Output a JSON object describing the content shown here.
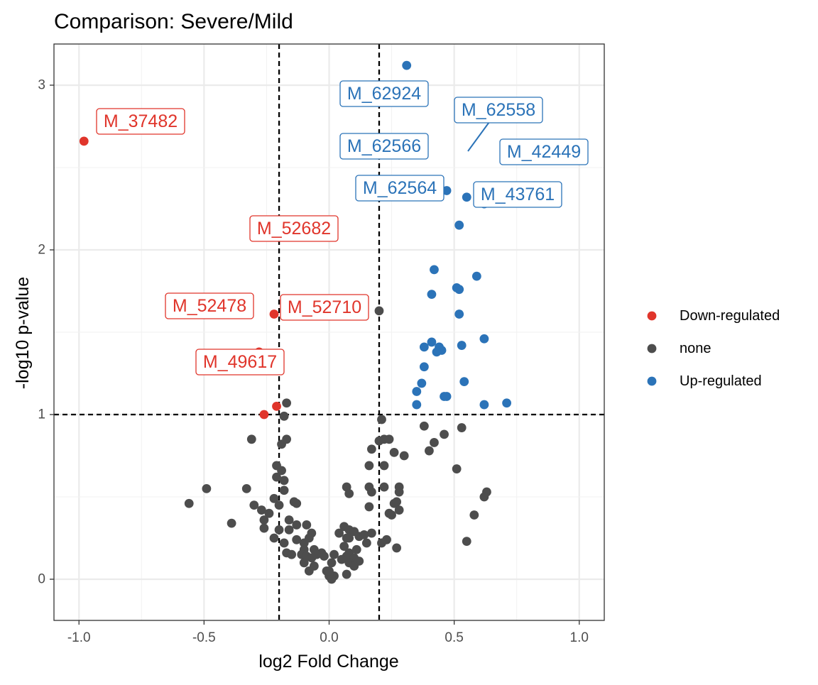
{
  "chart_data": {
    "type": "scatter",
    "title": "Comparison: Severe/Mild",
    "xlabel": "log2 Fold Change",
    "ylabel": "-log10 p-value",
    "xlim": [
      -1.1,
      1.1
    ],
    "ylim": [
      -0.25,
      3.25
    ],
    "x_ticks": [
      -1.0,
      -0.5,
      0.0,
      0.5,
      1.0
    ],
    "x_tick_labels": [
      "-1.0",
      "-0.5",
      "0.0",
      "0.5",
      "1.0"
    ],
    "y_ticks": [
      0,
      1,
      2,
      3
    ],
    "y_tick_labels": [
      "0",
      "1",
      "2",
      "3"
    ],
    "thresholds": {
      "x": [
        -0.2,
        0.2
      ],
      "y": 1
    },
    "grid": true,
    "legend_position": "right",
    "colors": {
      "Down-regulated": "#e0352b",
      "none": "#4d4d4d",
      "Up-regulated": "#2b73b8"
    },
    "legend": [
      {
        "label": "Down-regulated",
        "color": "#e0352b"
      },
      {
        "label": "none",
        "color": "#4d4d4d"
      },
      {
        "label": "Up-regulated",
        "color": "#2b73b8"
      }
    ],
    "series": [
      {
        "name": "Down-regulated",
        "points": [
          [
            -0.98,
            2.66
          ],
          [
            -0.22,
            1.61
          ],
          [
            -0.28,
            1.38
          ],
          [
            -0.21,
            1.05
          ],
          [
            -0.26,
            1.0
          ]
        ]
      },
      {
        "name": "Up-regulated",
        "points": [
          [
            0.31,
            3.12
          ],
          [
            0.47,
            2.36
          ],
          [
            0.55,
            2.32
          ],
          [
            0.62,
            2.28
          ],
          [
            0.52,
            2.15
          ],
          [
            0.42,
            1.88
          ],
          [
            0.59,
            1.84
          ],
          [
            0.51,
            1.77
          ],
          [
            0.52,
            1.76
          ],
          [
            0.41,
            1.73
          ],
          [
            0.52,
            1.61
          ],
          [
            0.62,
            1.46
          ],
          [
            0.41,
            1.44
          ],
          [
            0.53,
            1.42
          ],
          [
            0.38,
            1.41
          ],
          [
            0.44,
            1.41
          ],
          [
            0.45,
            1.39
          ],
          [
            0.43,
            1.38
          ],
          [
            0.38,
            1.29
          ],
          [
            0.54,
            1.2
          ],
          [
            0.37,
            1.19
          ],
          [
            0.35,
            1.14
          ],
          [
            0.46,
            1.11
          ],
          [
            0.47,
            1.11
          ],
          [
            0.71,
            1.07
          ],
          [
            0.62,
            1.06
          ],
          [
            0.35,
            1.06
          ]
        ]
      },
      {
        "name": "none",
        "points": [
          [
            0.2,
            1.63
          ],
          [
            -0.17,
            1.07
          ],
          [
            -0.18,
            0.99
          ],
          [
            0.21,
            0.97
          ],
          [
            0.38,
            0.93
          ],
          [
            0.53,
            0.92
          ],
          [
            0.46,
            0.88
          ],
          [
            0.2,
            0.84
          ],
          [
            0.22,
            0.85
          ],
          [
            0.24,
            0.85
          ],
          [
            -0.31,
            0.85
          ],
          [
            -0.19,
            0.82
          ],
          [
            -0.17,
            0.85
          ],
          [
            0.17,
            0.79
          ],
          [
            0.42,
            0.83
          ],
          [
            0.4,
            0.78
          ],
          [
            0.26,
            0.77
          ],
          [
            0.3,
            0.75
          ],
          [
            -0.21,
            0.69
          ],
          [
            -0.19,
            0.66
          ],
          [
            0.16,
            0.69
          ],
          [
            0.22,
            0.69
          ],
          [
            0.51,
            0.67
          ],
          [
            -0.21,
            0.62
          ],
          [
            -0.18,
            0.6
          ],
          [
            -0.49,
            0.55
          ],
          [
            -0.33,
            0.55
          ],
          [
            -0.18,
            0.54
          ],
          [
            0.07,
            0.56
          ],
          [
            0.16,
            0.56
          ],
          [
            0.22,
            0.56
          ],
          [
            0.28,
            0.56
          ],
          [
            0.28,
            0.53
          ],
          [
            0.17,
            0.53
          ],
          [
            0.08,
            0.52
          ],
          [
            0.63,
            0.53
          ],
          [
            0.62,
            0.5
          ],
          [
            -0.22,
            0.49
          ],
          [
            -0.2,
            0.45
          ],
          [
            -0.14,
            0.47
          ],
          [
            -0.13,
            0.46
          ],
          [
            -0.56,
            0.46
          ],
          [
            -0.3,
            0.45
          ],
          [
            -0.27,
            0.42
          ],
          [
            -0.24,
            0.4
          ],
          [
            0.26,
            0.46
          ],
          [
            0.27,
            0.47
          ],
          [
            0.16,
            0.44
          ],
          [
            0.24,
            0.4
          ],
          [
            0.25,
            0.39
          ],
          [
            0.28,
            0.42
          ],
          [
            -0.16,
            0.36
          ],
          [
            -0.13,
            0.33
          ],
          [
            -0.39,
            0.34
          ],
          [
            -0.26,
            0.36
          ],
          [
            -0.2,
            0.3
          ],
          [
            -0.16,
            0.3
          ],
          [
            -0.09,
            0.33
          ],
          [
            -0.07,
            0.28
          ],
          [
            0.06,
            0.32
          ],
          [
            0.08,
            0.3
          ],
          [
            0.1,
            0.29
          ],
          [
            0.12,
            0.26
          ],
          [
            0.08,
            0.25
          ],
          [
            0.04,
            0.28
          ],
          [
            0.07,
            0.25
          ],
          [
            0.14,
            0.27
          ],
          [
            0.17,
            0.28
          ],
          [
            0.58,
            0.39
          ],
          [
            0.55,
            0.23
          ],
          [
            -0.26,
            0.31
          ],
          [
            -0.22,
            0.25
          ],
          [
            -0.18,
            0.22
          ],
          [
            -0.13,
            0.24
          ],
          [
            -0.1,
            0.22
          ],
          [
            -0.08,
            0.25
          ],
          [
            -0.1,
            0.18
          ],
          [
            -0.06,
            0.18
          ],
          [
            -0.03,
            0.16
          ],
          [
            0.02,
            0.15
          ],
          [
            0.06,
            0.2
          ],
          [
            0.08,
            0.16
          ],
          [
            0.11,
            0.18
          ],
          [
            0.15,
            0.22
          ],
          [
            0.21,
            0.22
          ],
          [
            0.23,
            0.24
          ],
          [
            0.27,
            0.19
          ],
          [
            -0.17,
            0.16
          ],
          [
            -0.15,
            0.15
          ],
          [
            -0.11,
            0.15
          ],
          [
            -0.09,
            0.14
          ],
          [
            -0.07,
            0.13
          ],
          [
            -0.05,
            0.15
          ],
          [
            -0.02,
            0.14
          ],
          [
            0.07,
            0.14
          ],
          [
            0.1,
            0.13
          ],
          [
            0.12,
            0.11
          ],
          [
            0.08,
            0.1
          ],
          [
            -0.1,
            0.1
          ],
          [
            -0.06,
            0.08
          ],
          [
            0.05,
            0.12
          ],
          [
            0.1,
            0.08
          ],
          [
            0.01,
            0.1
          ],
          [
            -0.01,
            0.05
          ],
          [
            0.02,
            0.02
          ],
          [
            0.0,
            0.02
          ],
          [
            0.01,
            0.0
          ],
          [
            0.0,
            0.05
          ],
          [
            0.07,
            0.03
          ],
          [
            -0.08,
            0.05
          ]
        ]
      }
    ],
    "annotations": [
      {
        "label": "M_37482",
        "group": "Down-regulated"
      },
      {
        "label": "M_52682",
        "group": "Down-regulated"
      },
      {
        "label": "M_52478",
        "group": "Down-regulated"
      },
      {
        "label": "M_52710",
        "group": "Down-regulated"
      },
      {
        "label": "M_49617",
        "group": "Down-regulated"
      },
      {
        "label": "M_62924",
        "group": "Up-regulated"
      },
      {
        "label": "M_62558",
        "group": "Up-regulated"
      },
      {
        "label": "M_62566",
        "group": "Up-regulated"
      },
      {
        "label": "M_42449",
        "group": "Up-regulated"
      },
      {
        "label": "M_62564",
        "group": "Up-regulated"
      },
      {
        "label": "M_43761",
        "group": "Up-regulated"
      }
    ]
  }
}
